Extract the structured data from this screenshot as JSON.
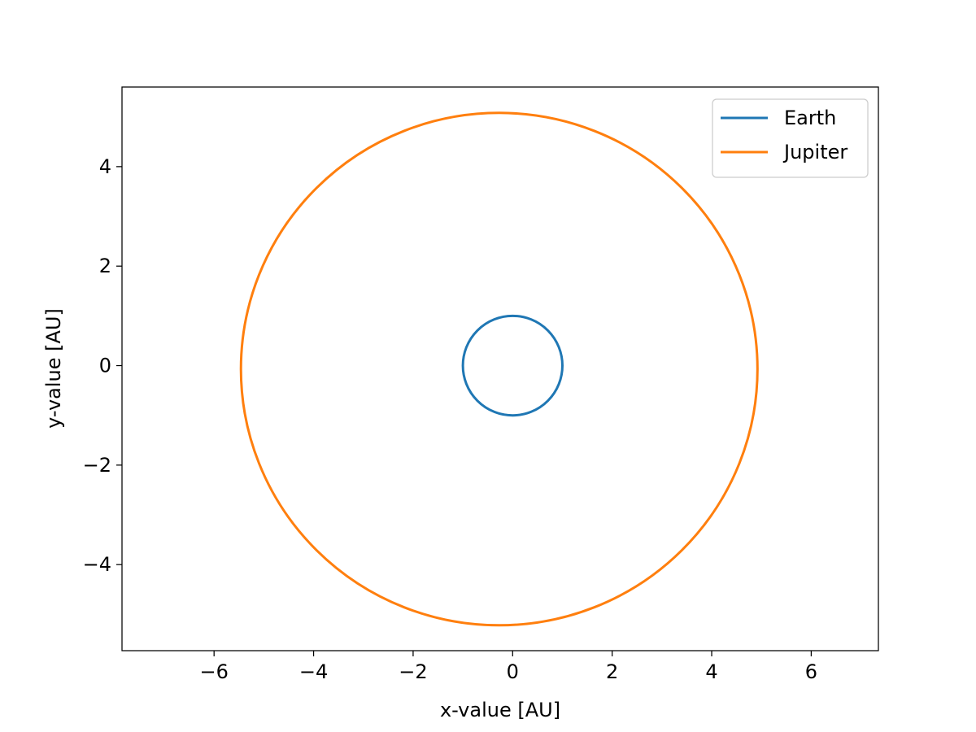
{
  "chart_data": {
    "type": "line",
    "title": "",
    "xlabel": "x-value [AU]",
    "ylabel": "y-value [AU]",
    "xlim": [
      -7.85,
      7.35
    ],
    "ylim": [
      -5.73,
      5.6
    ],
    "xticks": [
      -6,
      -4,
      -2,
      0,
      2,
      4,
      6
    ],
    "yticks": [
      -4,
      -2,
      0,
      2,
      4
    ],
    "xtick_labels": [
      "−6",
      "−4",
      "−2",
      "0",
      "2",
      "4",
      "6"
    ],
    "ytick_labels": [
      "−4",
      "−2",
      "0",
      "2",
      "4"
    ],
    "grid": false,
    "legend_position": "top-right",
    "series": [
      {
        "name": "Earth",
        "color": "#1f77b4",
        "shape": "closed orbit",
        "center": [
          0.0,
          0.0
        ],
        "radius_x": 1.0,
        "radius_y": 1.0
      },
      {
        "name": "Jupiter",
        "color": "#ff7f0e",
        "shape": "closed orbit",
        "center": [
          -0.27,
          -0.07
        ],
        "radius_x": 5.19,
        "radius_y": 5.15
      }
    ]
  }
}
